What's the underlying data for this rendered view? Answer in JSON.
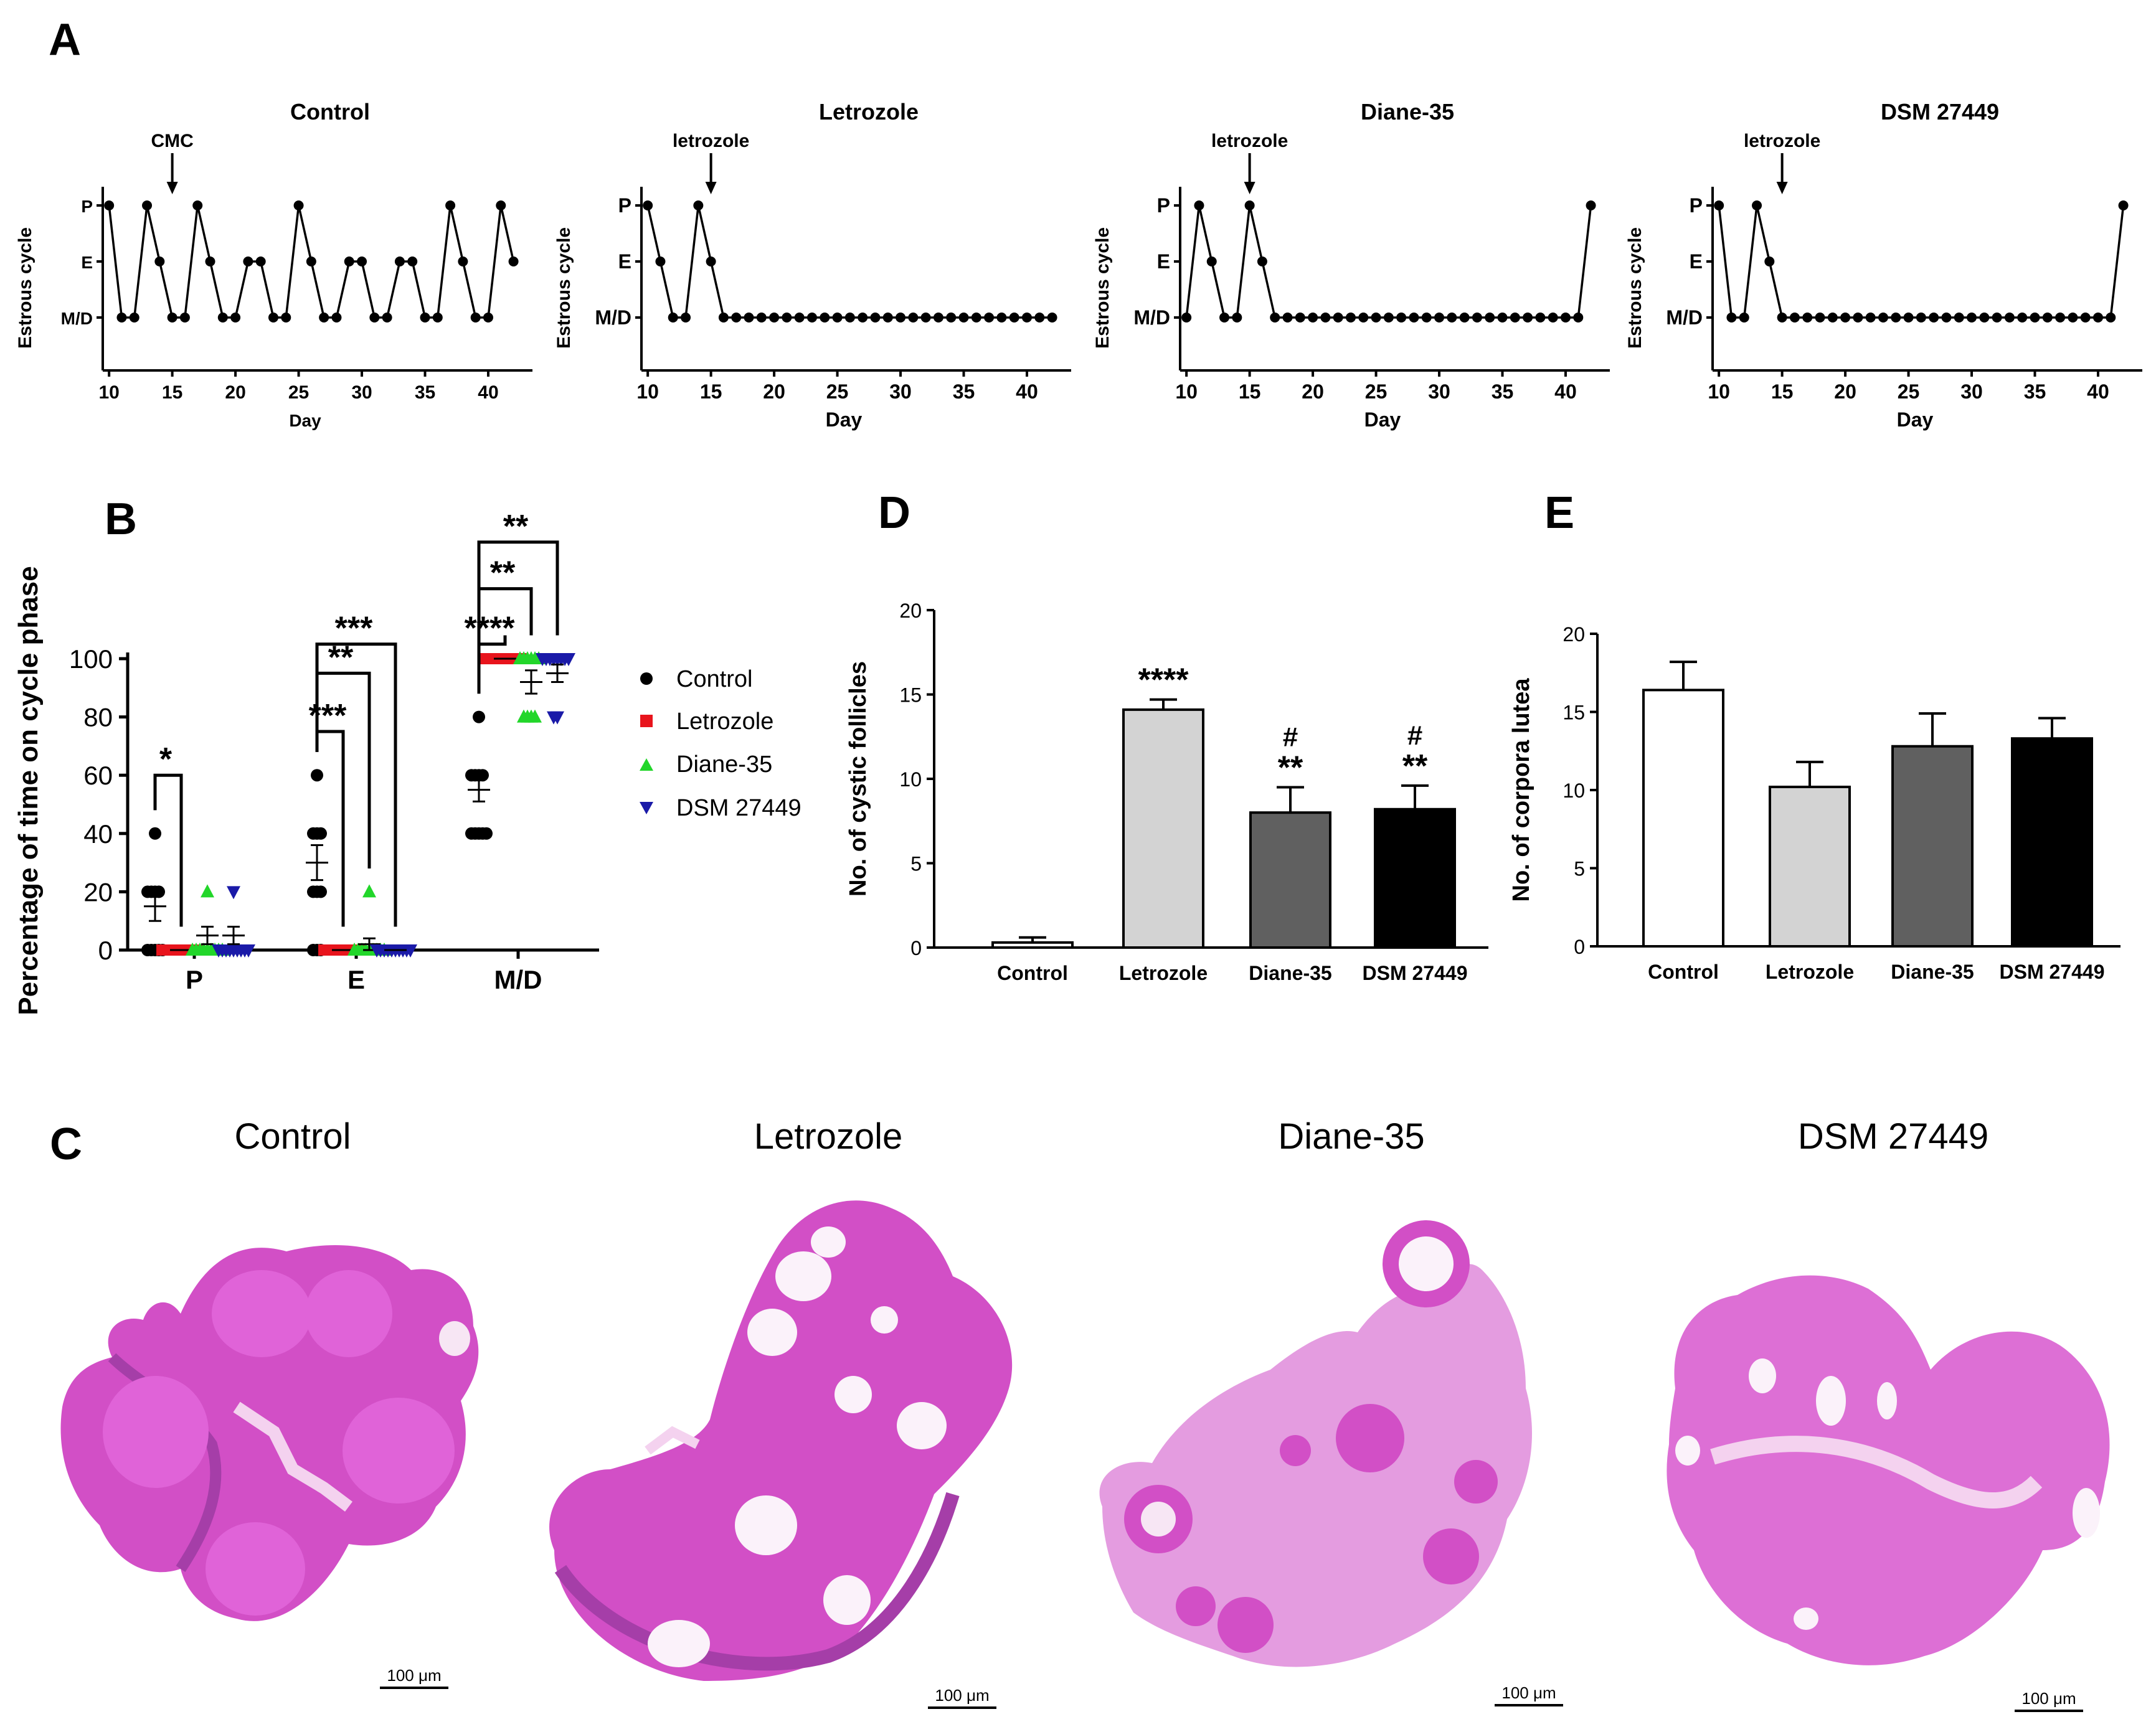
{
  "panels": {
    "A": "A",
    "B": "B",
    "C": "C",
    "D": "D",
    "E": "E"
  },
  "colors": {
    "axis": "#000000",
    "letrozole": "#e8141c",
    "diane": "#22d62a",
    "dsm": "#1a1aa8",
    "bar_control": "#ffffff",
    "bar_letrozole": "#d3d3d3",
    "bar_diane": "#606060",
    "bar_dsm": "#000000",
    "tissue": "#d24fc6",
    "tissue_dark": "#a53ea8",
    "tissue_light": "#f4d2ef"
  },
  "chart_data": [
    {
      "id": "A",
      "type": "line",
      "ylabel": "Estrous cycle",
      "xlabel": "Day",
      "xlim": [
        10,
        42
      ],
      "xticks": [
        "10",
        "15",
        "20",
        "25",
        "30",
        "35",
        "40"
      ],
      "yticks": [
        "P",
        "E",
        "M/D"
      ],
      "y_levels": {
        "P": 3,
        "E": 2,
        "M/D": 1
      },
      "subplots": [
        {
          "title": "Control",
          "annotation": "CMC",
          "annotation_day": 15,
          "days": [
            10,
            11,
            12,
            13,
            14,
            15,
            16,
            17,
            18,
            19,
            20,
            21,
            22,
            23,
            24,
            25,
            26,
            27,
            28,
            29,
            30,
            31,
            32,
            33,
            34,
            35,
            36,
            37,
            38,
            39,
            40,
            41,
            42
          ],
          "phase": [
            3,
            1,
            1,
            3,
            2,
            1,
            1,
            3,
            2,
            1,
            1,
            2,
            2,
            1,
            1,
            3,
            2,
            1,
            1,
            2,
            2,
            1,
            1,
            2,
            2,
            1,
            1,
            3,
            2,
            1,
            1,
            3,
            2
          ]
        },
        {
          "title": "Letrozole",
          "annotation": "letrozole",
          "annotation_day": 15,
          "days": [
            10,
            11,
            12,
            13,
            14,
            15,
            16,
            17,
            18,
            19,
            20,
            21,
            22,
            23,
            24,
            25,
            26,
            27,
            28,
            29,
            30,
            31,
            32,
            33,
            34,
            35,
            36,
            37,
            38,
            39,
            40,
            41,
            42
          ],
          "phase": [
            3,
            2,
            1,
            1,
            3,
            2,
            1,
            1,
            1,
            1,
            1,
            1,
            1,
            1,
            1,
            1,
            1,
            1,
            1,
            1,
            1,
            1,
            1,
            1,
            1,
            1,
            1,
            1,
            1,
            1,
            1,
            1,
            1
          ]
        },
        {
          "title": "Diane-35",
          "annotation": "letrozole",
          "annotation_day": 15,
          "days": [
            10,
            11,
            12,
            13,
            14,
            15,
            16,
            17,
            18,
            19,
            20,
            21,
            22,
            23,
            24,
            25,
            26,
            27,
            28,
            29,
            30,
            31,
            32,
            33,
            34,
            35,
            36,
            37,
            38,
            39,
            40,
            41,
            42
          ],
          "phase": [
            1,
            3,
            2,
            1,
            1,
            3,
            2,
            1,
            1,
            1,
            1,
            1,
            1,
            1,
            1,
            1,
            1,
            1,
            1,
            1,
            1,
            1,
            1,
            1,
            1,
            1,
            1,
            1,
            1,
            1,
            1,
            1,
            3
          ]
        },
        {
          "title": "DSM 27449",
          "annotation": "letrozole",
          "annotation_day": 15,
          "days": [
            10,
            11,
            12,
            13,
            14,
            15,
            16,
            17,
            18,
            19,
            20,
            21,
            22,
            23,
            24,
            25,
            26,
            27,
            28,
            29,
            30,
            31,
            32,
            33,
            34,
            35,
            36,
            37,
            38,
            39,
            40,
            41,
            42
          ],
          "phase": [
            3,
            1,
            1,
            3,
            2,
            1,
            1,
            1,
            1,
            1,
            1,
            1,
            1,
            1,
            1,
            1,
            1,
            1,
            1,
            1,
            1,
            1,
            1,
            1,
            1,
            1,
            1,
            1,
            1,
            1,
            1,
            1,
            3
          ]
        }
      ]
    },
    {
      "id": "B",
      "type": "scatter",
      "ylabel": "Percentage of time on cycle phase",
      "ylim": [
        0,
        100
      ],
      "yticks": [
        "0",
        "20",
        "40",
        "60",
        "80",
        "100"
      ],
      "categories": [
        "P",
        "E",
        "M/D"
      ],
      "series": [
        {
          "name": "Control",
          "marker": "circle",
          "points": [
            [
              0,
              40,
              20,
              20,
              20,
              20,
              0,
              0,
              0,
              0
            ],
            [
              60,
              40,
              40,
              40,
              20,
              20,
              20,
              0,
              0,
              0
            ],
            [
              80,
              60,
              60,
              60,
              60,
              40,
              40,
              40,
              40,
              40
            ]
          ],
          "mean": [
            15,
            30,
            55
          ],
          "sem": [
            5,
            6,
            4
          ]
        },
        {
          "name": "Letrozole",
          "marker": "square",
          "points": [
            [
              0,
              0,
              0,
              0,
              0,
              0,
              0,
              0,
              0,
              0
            ],
            [
              0,
              0,
              0,
              0,
              0,
              0,
              0,
              0,
              0,
              0
            ],
            [
              100,
              100,
              100,
              100,
              100,
              100,
              100,
              100,
              100,
              100
            ]
          ],
          "mean": [
            0,
            0,
            100
          ],
          "sem": [
            0,
            0,
            0
          ]
        },
        {
          "name": "Diane-35",
          "marker": "triangle-up",
          "points": [
            [
              20,
              0,
              0,
              0,
              0,
              0,
              0,
              0,
              0,
              0
            ],
            [
              20,
              0,
              0,
              0,
              0,
              0,
              0,
              0,
              0,
              0
            ],
            [
              100,
              100,
              100,
              100,
              100,
              100,
              80,
              80,
              80,
              80
            ]
          ],
          "mean": [
            5,
            2,
            92
          ],
          "sem": [
            3,
            2,
            4
          ]
        },
        {
          "name": "DSM 27449",
          "marker": "triangle-down",
          "points": [
            [
              20,
              0,
              0,
              0,
              0,
              0,
              0,
              0,
              0,
              0
            ],
            [
              0,
              0,
              0,
              0,
              0,
              0,
              0,
              0,
              0,
              0
            ],
            [
              100,
              100,
              100,
              100,
              100,
              100,
              100,
              100,
              80,
              80
            ]
          ],
          "mean": [
            5,
            0,
            95
          ],
          "sem": [
            3,
            0,
            3
          ]
        }
      ],
      "significance": [
        {
          "group": "P",
          "from": "Control",
          "to": "Letrozole",
          "label": "*",
          "y": 60
        },
        {
          "group": "E",
          "from": "Control",
          "to": "Letrozole",
          "label": "***",
          "y": 75
        },
        {
          "group": "E",
          "from": "Control",
          "to": "Diane-35",
          "label": "**",
          "y": 95
        },
        {
          "group": "E",
          "from": "Control",
          "to": "DSM 27449",
          "label": "***",
          "y": 105
        },
        {
          "group": "M/D",
          "from": "Control",
          "to": "Letrozole",
          "label": "****",
          "y": 105
        },
        {
          "group": "M/D",
          "from": "Control",
          "to": "Diane-35",
          "label": "**",
          "y": 124
        },
        {
          "group": "M/D",
          "from": "Control",
          "to": "DSM 27449",
          "label": "**",
          "y": 140
        }
      ],
      "legend": [
        "Control",
        "Letrozole",
        "Diane-35",
        "DSM 27449"
      ]
    },
    {
      "id": "D",
      "type": "bar",
      "ylabel": "No. of cystic follicles",
      "ylim": [
        0,
        20
      ],
      "yticks": [
        "0",
        "5",
        "10",
        "15",
        "20"
      ],
      "categories": [
        "Control",
        "Letrozole",
        "Diane-35",
        "DSM 27449"
      ],
      "values": [
        0.3,
        14.1,
        8.0,
        8.2
      ],
      "errors": [
        0.3,
        0.6,
        1.5,
        1.4
      ],
      "star_labels": [
        "",
        "****",
        "**",
        "**"
      ],
      "hash_labels": [
        "",
        "",
        "#",
        "#"
      ]
    },
    {
      "id": "E",
      "type": "bar",
      "ylabel": "No. of corpora lutea",
      "ylim": [
        0,
        20
      ],
      "yticks": [
        "0",
        "5",
        "10",
        "15",
        "20"
      ],
      "categories": [
        "Control",
        "Letrozole",
        "Diane-35",
        "DSM 27449"
      ],
      "values": [
        16.4,
        10.2,
        12.8,
        13.3
      ],
      "errors": [
        1.8,
        1.6,
        2.1,
        1.3
      ]
    }
  ],
  "histology": {
    "titles": [
      "Control",
      "Letrozole",
      "Diane-35",
      "DSM 27449"
    ],
    "scale_bar": "100 μm"
  }
}
